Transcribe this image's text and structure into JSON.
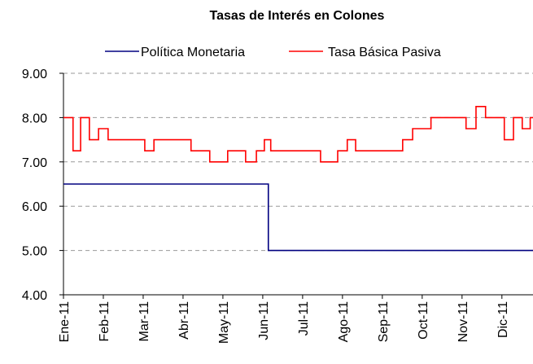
{
  "chart_data": {
    "type": "line",
    "title": "Tasas de Interés en Colones",
    "xlim": [
      0,
      11.78
    ],
    "xticks": [
      {
        "value": 0,
        "label": "Ene-11"
      },
      {
        "value": 1,
        "label": "Feb-11"
      },
      {
        "value": 2,
        "label": "Mar-11"
      },
      {
        "value": 3,
        "label": "Abr-11"
      },
      {
        "value": 4,
        "label": "May-11"
      },
      {
        "value": 5,
        "label": "Jun-11"
      },
      {
        "value": 6,
        "label": "Jul-11"
      },
      {
        "value": 7,
        "label": "Ago-11"
      },
      {
        "value": 8,
        "label": "Sep-11"
      },
      {
        "value": 9,
        "label": "Oct-11"
      },
      {
        "value": 10,
        "label": "Nov-11"
      },
      {
        "value": 11,
        "label": "Dic-11"
      }
    ],
    "ylim": [
      4,
      9
    ],
    "yticks": [
      {
        "value": 4,
        "label": "4.00"
      },
      {
        "value": 5,
        "label": "5.00"
      },
      {
        "value": 6,
        "label": "6.00"
      },
      {
        "value": 7,
        "label": "7.00"
      },
      {
        "value": 8,
        "label": "8.00"
      },
      {
        "value": 9,
        "label": "9.00"
      }
    ],
    "grid": true,
    "series": [
      {
        "name": "Política Monetaria",
        "color": "#000080",
        "x": [
          0,
          5.14,
          5.14,
          11.78
        ],
        "values": [
          6.5,
          6.5,
          5,
          5
        ]
      },
      {
        "name": "Tasa Básica Pasiva",
        "color": "#ff0000",
        "x": [
          0,
          0.24,
          0.24,
          0.43,
          0.43,
          0.65,
          0.65,
          0.88,
          0.88,
          1.12,
          1.12,
          2.04,
          2.04,
          2.27,
          2.27,
          3.2,
          3.2,
          3.67,
          3.67,
          4.12,
          4.12,
          4.57,
          4.57,
          4.84,
          4.84,
          5.04,
          5.04,
          5.2,
          5.2,
          6.45,
          6.45,
          6.88,
          6.88,
          7.12,
          7.12,
          7.33,
          7.33,
          8.51,
          8.51,
          8.76,
          8.76,
          9.22,
          9.22,
          10.1,
          10.1,
          10.35,
          10.35,
          10.59,
          10.59,
          11.06,
          11.06,
          11.29,
          11.29,
          11.51,
          11.51,
          11.71,
          11.71,
          11.78
        ],
        "values": [
          8,
          8,
          7.25,
          7.25,
          8,
          8,
          7.5,
          7.5,
          7.75,
          7.75,
          7.5,
          7.5,
          7.25,
          7.25,
          7.5,
          7.5,
          7.25,
          7.25,
          7,
          7,
          7.25,
          7.25,
          7,
          7,
          7.25,
          7.25,
          7.5,
          7.5,
          7.25,
          7.25,
          7,
          7,
          7.25,
          7.25,
          7.5,
          7.5,
          7.25,
          7.25,
          7.5,
          7.5,
          7.75,
          7.75,
          8,
          8,
          7.75,
          7.75,
          8.25,
          8.25,
          8,
          8,
          7.5,
          7.5,
          8,
          8,
          7.75,
          7.75,
          8,
          8
        ]
      }
    ]
  }
}
